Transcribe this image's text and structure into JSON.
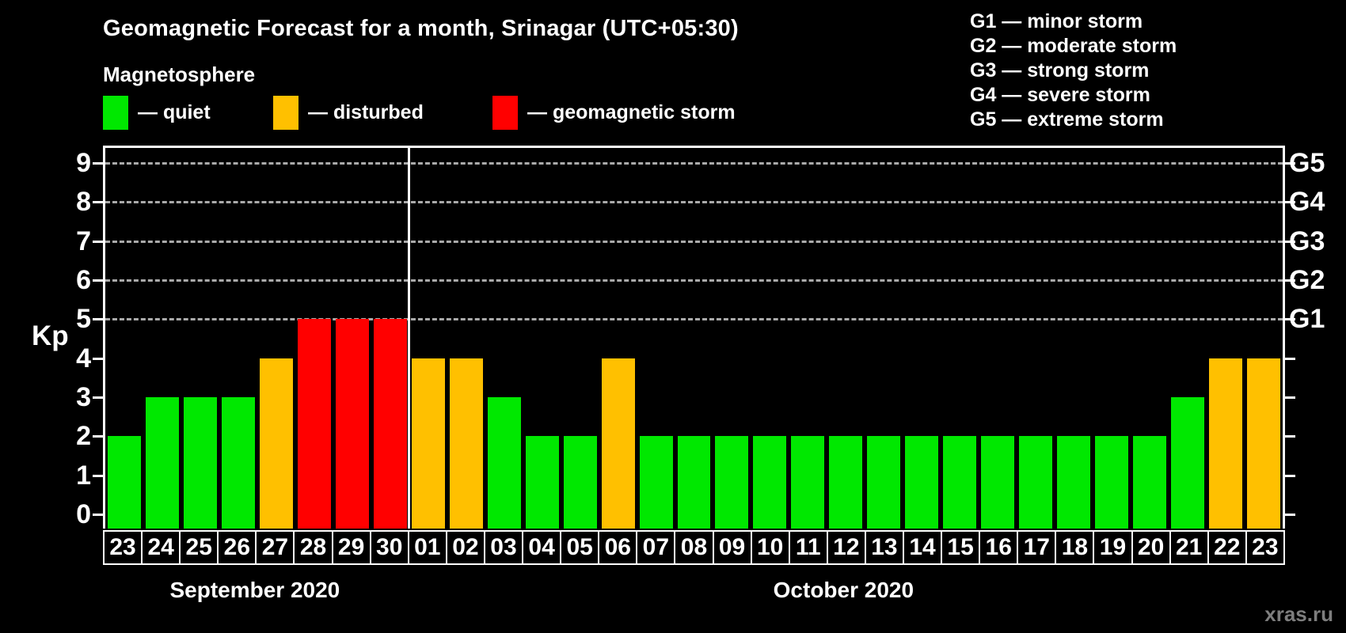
{
  "header": {
    "title": "Geomagnetic Forecast for a month, Srinagar (UTC+05:30)",
    "subtitle": "Magnetosphere"
  },
  "legend": {
    "items": [
      {
        "name": "quiet",
        "label": "— quiet",
        "color": "#00e800"
      },
      {
        "name": "disturbed",
        "label": "— disturbed",
        "color": "#ffc000"
      },
      {
        "name": "storm",
        "label": "— geomagnetic storm",
        "color": "#ff0000"
      }
    ]
  },
  "storm_scale": [
    {
      "text": "G1 — minor storm"
    },
    {
      "text": "G2 — moderate storm"
    },
    {
      "text": "G3 — strong storm"
    },
    {
      "text": "G4 — severe storm"
    },
    {
      "text": "G5 — extreme storm"
    }
  ],
  "axis": {
    "kp_label": "Kp"
  },
  "watermark": {
    "text": "xras.ru"
  },
  "chart_data": {
    "type": "bar",
    "title": "Geomagnetic Forecast for a month, Srinagar (UTC+05:30)",
    "ylabel": "Kp",
    "ylim": [
      0,
      9
    ],
    "yticks": [
      0,
      1,
      2,
      3,
      4,
      5,
      6,
      7,
      8,
      9
    ],
    "gridlines_at": [
      5,
      6,
      7,
      8,
      9
    ],
    "grid_style": "dashed horizontal lines only at G-storm levels (Kp 5-9)",
    "right_axis": [
      {
        "value": 5,
        "label": "G1"
      },
      {
        "value": 6,
        "label": "G2"
      },
      {
        "value": 7,
        "label": "G3"
      },
      {
        "value": 8,
        "label": "G4"
      },
      {
        "value": 9,
        "label": "G5"
      }
    ],
    "months": [
      {
        "label": "September 2020",
        "days": 8
      },
      {
        "label": "October 2020",
        "days": 23
      }
    ],
    "categories": [
      "23",
      "24",
      "25",
      "26",
      "27",
      "28",
      "29",
      "30",
      "01",
      "02",
      "03",
      "04",
      "05",
      "06",
      "07",
      "08",
      "09",
      "10",
      "11",
      "12",
      "13",
      "14",
      "15",
      "16",
      "17",
      "18",
      "19",
      "20",
      "21",
      "22",
      "23"
    ],
    "values": [
      2,
      3,
      3,
      3,
      4,
      5,
      5,
      5,
      4,
      4,
      3,
      2,
      2,
      4,
      2,
      2,
      2,
      2,
      2,
      2,
      2,
      2,
      2,
      2,
      2,
      2,
      2,
      2,
      3,
      4,
      4
    ],
    "statuses": [
      "quiet",
      "quiet",
      "quiet",
      "quiet",
      "disturbed",
      "storm",
      "storm",
      "storm",
      "disturbed",
      "disturbed",
      "quiet",
      "quiet",
      "quiet",
      "disturbed",
      "quiet",
      "quiet",
      "quiet",
      "quiet",
      "quiet",
      "quiet",
      "quiet",
      "quiet",
      "quiet",
      "quiet",
      "quiet",
      "quiet",
      "quiet",
      "quiet",
      "quiet",
      "disturbed",
      "disturbed"
    ],
    "status_colors": {
      "quiet": "#00e800",
      "disturbed": "#ffc000",
      "storm": "#ff0000"
    }
  }
}
